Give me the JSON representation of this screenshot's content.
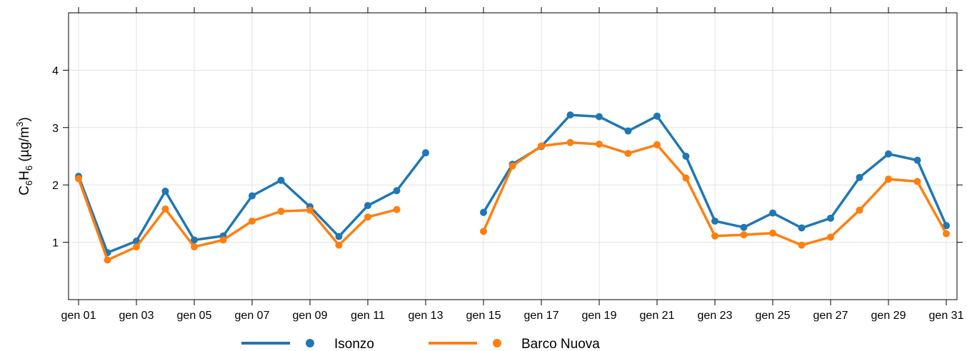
{
  "chart_data": {
    "type": "line",
    "ylabel": {
      "c": "C",
      "sub1": "6",
      "h": "H",
      "sub2": "6",
      "units_open": " (µg/m",
      "sup": "3",
      "units_close": ")"
    },
    "ylim": [
      0,
      5
    ],
    "yticks": [
      "1",
      "2",
      "3",
      "4"
    ],
    "xticks": [
      "gen 01",
      "gen 03",
      "gen 05",
      "gen 07",
      "gen 09",
      "gen 11",
      "gen 13",
      "gen 15",
      "gen 17",
      "gen 19",
      "gen 21",
      "gen 23",
      "gen 25",
      "gen 27",
      "gen 29",
      "gen 31"
    ],
    "x": [
      1,
      2,
      3,
      4,
      5,
      6,
      7,
      8,
      9,
      10,
      11,
      12,
      13,
      14,
      15,
      16,
      17,
      18,
      19,
      20,
      21,
      22,
      23,
      24,
      25,
      26,
      27,
      28,
      29,
      30,
      31
    ],
    "grid": true,
    "legend_position": "bottom",
    "series": [
      {
        "name": "Isonzo",
        "color": "#1f77b4",
        "values": [
          2.15,
          0.82,
          1.02,
          1.89,
          1.04,
          1.11,
          1.81,
          2.08,
          1.62,
          1.1,
          1.64,
          1.9,
          2.56,
          null,
          1.52,
          2.36,
          2.67,
          3.22,
          3.19,
          2.94,
          3.2,
          2.5,
          1.37,
          1.26,
          1.51,
          1.25,
          1.42,
          2.13,
          2.54,
          2.43,
          1.29
        ]
      },
      {
        "name": "Barco Nuova",
        "color": "#ff7f0e",
        "values": [
          2.11,
          0.69,
          0.92,
          1.58,
          0.92,
          1.04,
          1.37,
          1.54,
          1.56,
          0.95,
          1.44,
          1.57,
          null,
          null,
          1.19,
          2.33,
          2.68,
          2.74,
          2.71,
          2.55,
          2.7,
          2.12,
          1.11,
          1.13,
          1.16,
          0.95,
          1.09,
          1.56,
          2.1,
          2.06,
          1.15
        ]
      }
    ]
  }
}
